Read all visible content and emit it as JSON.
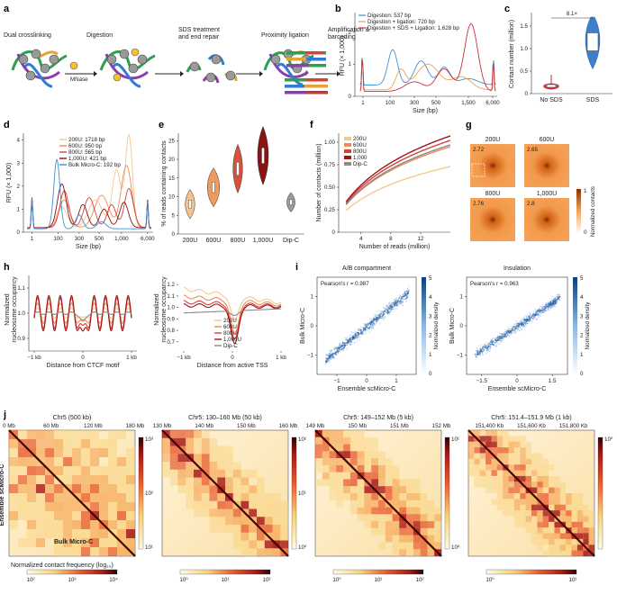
{
  "panels": {
    "a": {
      "label": "a",
      "steps": [
        "Dual crosslinking",
        "Digestion",
        "SDS treatment\nand end repair",
        "Proximity ligation",
        "Amplification &\nbarcoding"
      ],
      "mnase": "MNase"
    },
    "b": {
      "label": "b",
      "ylabel": "RFU (× 1,000)",
      "xlabel": "Size (bp)",
      "xticks": [
        "1",
        "100",
        "300",
        "500",
        "1,500",
        "6,000"
      ],
      "yticks": [
        "0",
        "1",
        "2"
      ],
      "legend": [
        "Digestion: 537 bp",
        "Digestion + ligation: 720 bp",
        "Digestion + SDS + Ligation: 1,628 bp"
      ],
      "colors": [
        "#3d8fd6",
        "#f0a050",
        "#c8323a"
      ]
    },
    "c": {
      "label": "c",
      "ylabel": "Contact number (million)",
      "yticks": [
        "0",
        "0.5",
        "1.0",
        "1.5"
      ],
      "categories": [
        "No SDS",
        "SDS"
      ],
      "fold": "8.1×"
    },
    "d": {
      "label": "d",
      "ylabel": "RFU (× 1,000)",
      "xlabel": "Size (bp)",
      "xticks": [
        "1",
        "100",
        "300",
        "500",
        "1,000",
        "6,000"
      ],
      "yticks": [
        "0",
        "1",
        "2",
        "3",
        "4"
      ],
      "legend": [
        "200U: 1718 bp",
        "600U: 950 bp",
        "800U: 565 bp",
        "1,000U: 421 bp",
        "Bulk Micro-C: 192 bp"
      ],
      "colors": [
        "#f5c890",
        "#f08a5a",
        "#d8403a",
        "#8a1010",
        "#3d8fd6"
      ]
    },
    "e": {
      "label": "e",
      "ylabel": "% of reads containing contacts",
      "yticks": [
        "0",
        "5",
        "10",
        "15",
        "20",
        "25"
      ],
      "categories": [
        "200U",
        "600U",
        "800U",
        "1,000U",
        "Dip-C"
      ],
      "colors": [
        "#f5c28a",
        "#f09a60",
        "#d8503c",
        "#8a1414",
        "#9a9a9a"
      ]
    },
    "f": {
      "label": "f",
      "ylabel": "Number of contacts (million)",
      "xlabel": "Number of reads (million)",
      "xticks": [
        "4",
        "8",
        "12"
      ],
      "yticks": [
        "0",
        "0.25",
        "0.50",
        "0.75",
        "1.00"
      ],
      "legend": [
        "200U",
        "600U",
        "800U",
        "1,000",
        "Dip-C"
      ]
    },
    "g": {
      "label": "g",
      "titles": [
        "200U",
        "600U",
        "800U",
        "1,000U"
      ],
      "values": [
        "2.72",
        "2.65",
        "2.76",
        "2.8"
      ],
      "cbar_label": "Normalized contacts",
      "cbar_ticks": [
        "1",
        "0"
      ]
    },
    "h": {
      "label": "h",
      "left_xlabel": "Distance from CTCF motif",
      "right_xlabel": "Distance from active TSS",
      "ylabel": "Normalized\nnucleosome occupancy",
      "left_yticks": [
        "0.9",
        "1.0",
        "1.1"
      ],
      "right_yticks": [
        "0.7",
        "0.8",
        "0.9",
        "1.0",
        "1.1",
        "1.2"
      ],
      "xticks": [
        "−1 kb",
        "0",
        "1 kb"
      ],
      "legend": [
        "200U",
        "600U",
        "800U",
        "1,000U",
        "Dip-C"
      ]
    },
    "i": {
      "label": "i",
      "left_title": "A/B compartment",
      "right_title": "Insulation",
      "left_r": "Pearson's r = 0.987",
      "right_r": "Pearson's r = 0.963",
      "xlabel": "Ensemble scMicro-C",
      "ylabel": "Bulk Micro-C",
      "cbar_label": "Normalized density",
      "left_xticks": [
        "−1",
        "0",
        "1"
      ],
      "left_yticks": [
        "−1",
        "0",
        "1"
      ],
      "right_xticks": [
        "−1.5",
        "0",
        "1.5"
      ],
      "right_yticks": [
        "−1",
        "0",
        "1"
      ],
      "cbar_ticks": [
        "5",
        "4",
        "3",
        "2",
        "1",
        "0"
      ]
    },
    "j": {
      "label": "j",
      "maps": [
        {
          "title": "Chr5 (500 kb)",
          "ticks": [
            "0 Mb",
            "60 Mb",
            "120 Mb",
            "180 Mb"
          ],
          "cbar": [
            "10³",
            "10²",
            "10¹"
          ]
        },
        {
          "title": "Chr5: 130–160 Mb (50 kb)",
          "ticks": [
            "130 Mb",
            "140 Mb",
            "150 Mb",
            "160 Mb"
          ],
          "cbar": [
            "10²",
            "10¹",
            "10⁰"
          ]
        },
        {
          "title": "Chr5: 149–152 Mb (5 kb)",
          "ticks": [
            "149 Mb",
            "150 Mb",
            "151 Mb",
            "152 Mb"
          ],
          "cbar": [
            "10¹",
            "10⁰"
          ]
        },
        {
          "title": "Chr5: 151.4–151.9 Mb (1 kb)",
          "ticks": [
            "151,400 Kb",
            "151,600 Kb",
            "151,800 Kb"
          ],
          "cbar": [
            "10⁰"
          ]
        }
      ],
      "ens_label": "Ensemble scMicro-C",
      "bulk_label": "Bulk Micro-C",
      "norm_label": "Normalized contact frequency (log₁₀)",
      "bottom_bars": [
        [
          "10²",
          "10³",
          "10⁴"
        ],
        [
          "10⁰",
          "10¹",
          "10²"
        ],
        [
          "10⁰",
          "10¹",
          "10²"
        ],
        [
          "10⁰",
          "10¹"
        ]
      ]
    }
  }
}
